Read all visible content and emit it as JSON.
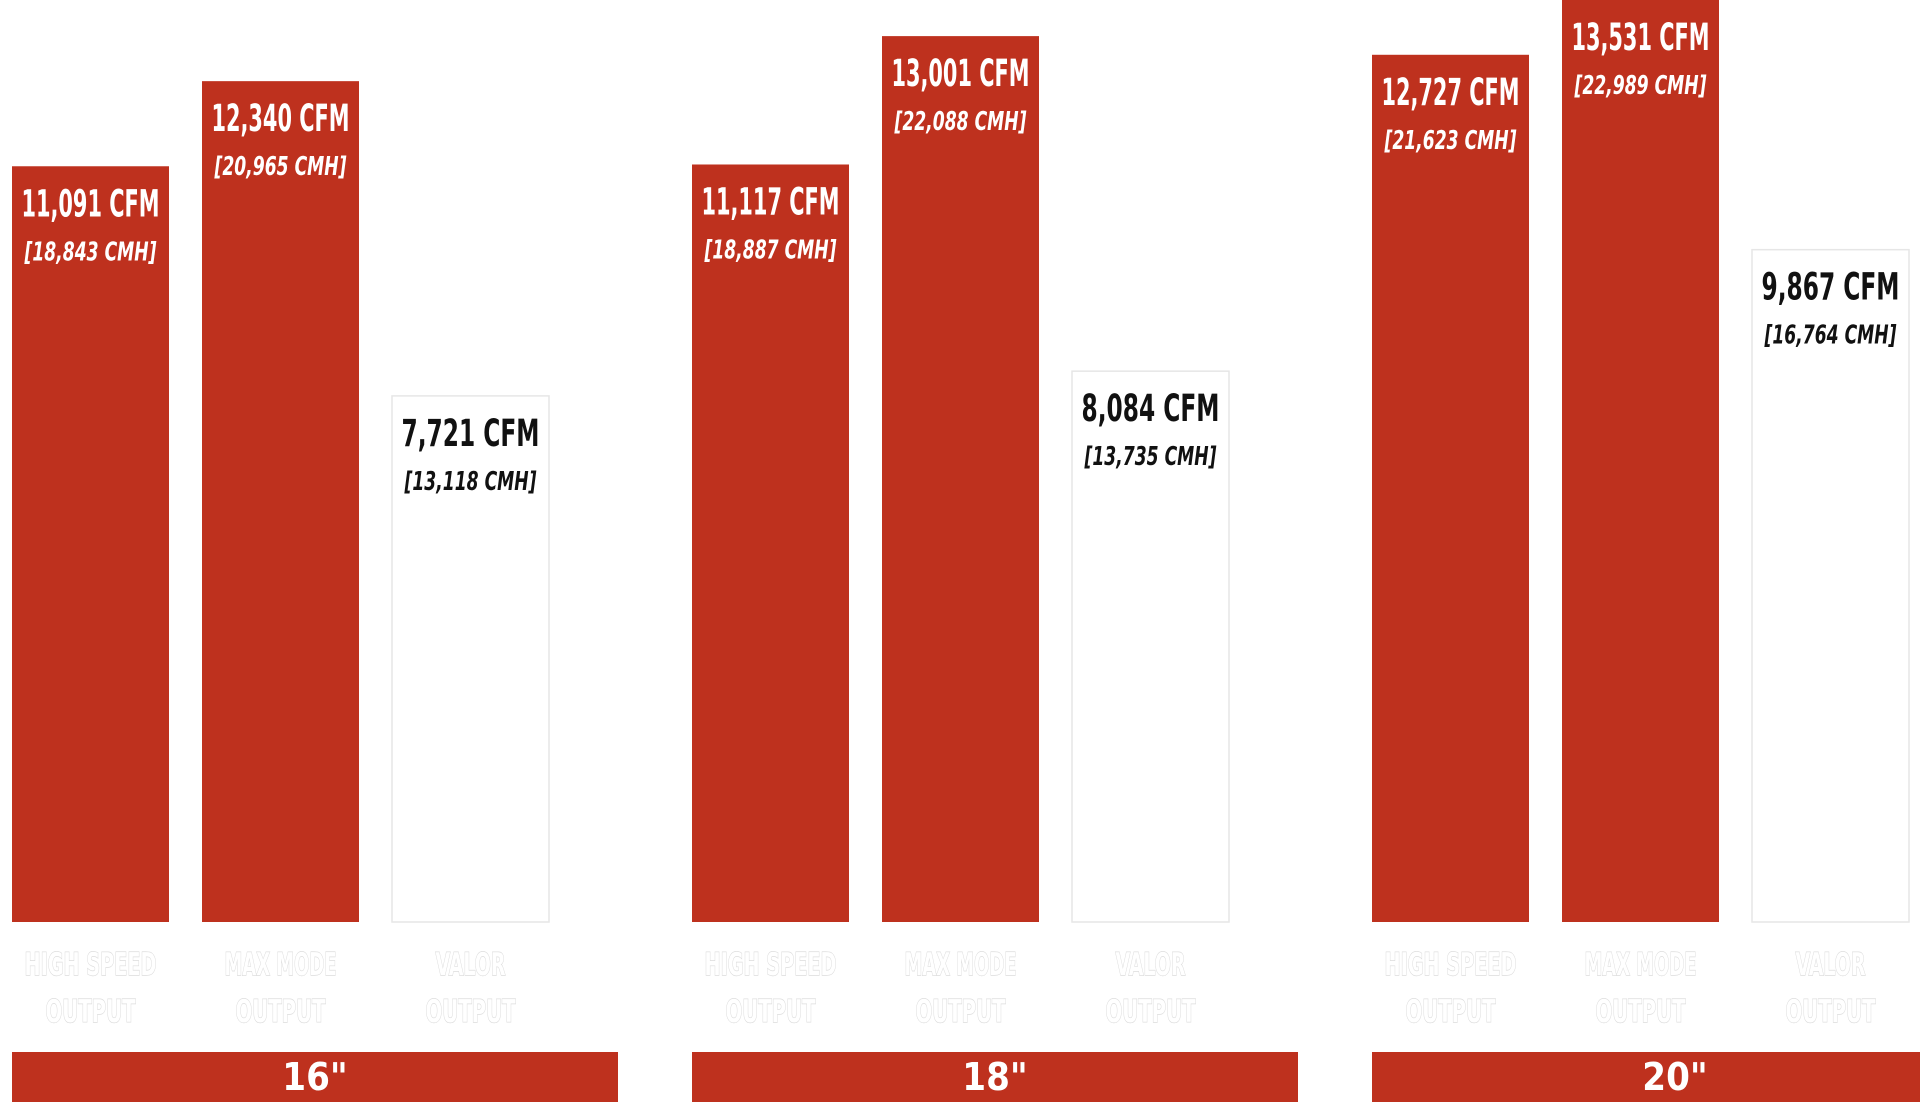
{
  "chart_data": {
    "type": "bar",
    "title": "",
    "xlabel": "",
    "ylabel": "",
    "ylim": [
      0,
      13531
    ],
    "grid": false,
    "legend": "none",
    "colors": {
      "primary_bar": "#be311e",
      "valor_bar": "#ffffff",
      "valor_border": "#e6e6e6",
      "label_on_red": "#ffffff",
      "label_on_white": "#111111",
      "group_band": "#be311e"
    },
    "groups": [
      {
        "label": "16\"",
        "bars": [
          {
            "category": [
              "HIGH SPEED",
              "OUTPUT"
            ],
            "value": 11091,
            "value_label": "11,091 CFM",
            "sub_label": "[18,843 CMH]"
          },
          {
            "category": [
              "MAX MODE",
              "OUTPUT"
            ],
            "value": 12340,
            "value_label": "12,340 CFM",
            "sub_label": "[20,965 CMH]"
          },
          {
            "category": [
              "VALOR",
              "OUTPUT"
            ],
            "value": 7721,
            "value_label": "7,721 CFM",
            "sub_label": "[13,118 CMH]"
          }
        ]
      },
      {
        "label": "18\"",
        "bars": [
          {
            "category": [
              "HIGH SPEED",
              "OUTPUT"
            ],
            "value": 11117,
            "value_label": "11,117 CFM",
            "sub_label": "[18,887 CMH]"
          },
          {
            "category": [
              "MAX MODE",
              "OUTPUT"
            ],
            "value": 13001,
            "value_label": "13,001 CFM",
            "sub_label": "[22,088 CMH]"
          },
          {
            "category": [
              "VALOR",
              "OUTPUT"
            ],
            "value": 8084,
            "value_label": "8,084 CFM",
            "sub_label": "[13,735 CMH]"
          }
        ]
      },
      {
        "label": "20\"",
        "bars": [
          {
            "category": [
              "HIGH SPEED",
              "OUTPUT"
            ],
            "value": 12727,
            "value_label": "12,727 CFM",
            "sub_label": "[21,623 CMH]"
          },
          {
            "category": [
              "MAX MODE",
              "OUTPUT"
            ],
            "value": 13531,
            "value_label": "13,531 CFM",
            "sub_label": "[22,989 CMH]"
          },
          {
            "category": [
              "VALOR",
              "OUTPUT"
            ],
            "value": 9867,
            "value_label": "9,867 CFM",
            "sub_label": "[16,764 CMH]"
          }
        ]
      }
    ]
  }
}
